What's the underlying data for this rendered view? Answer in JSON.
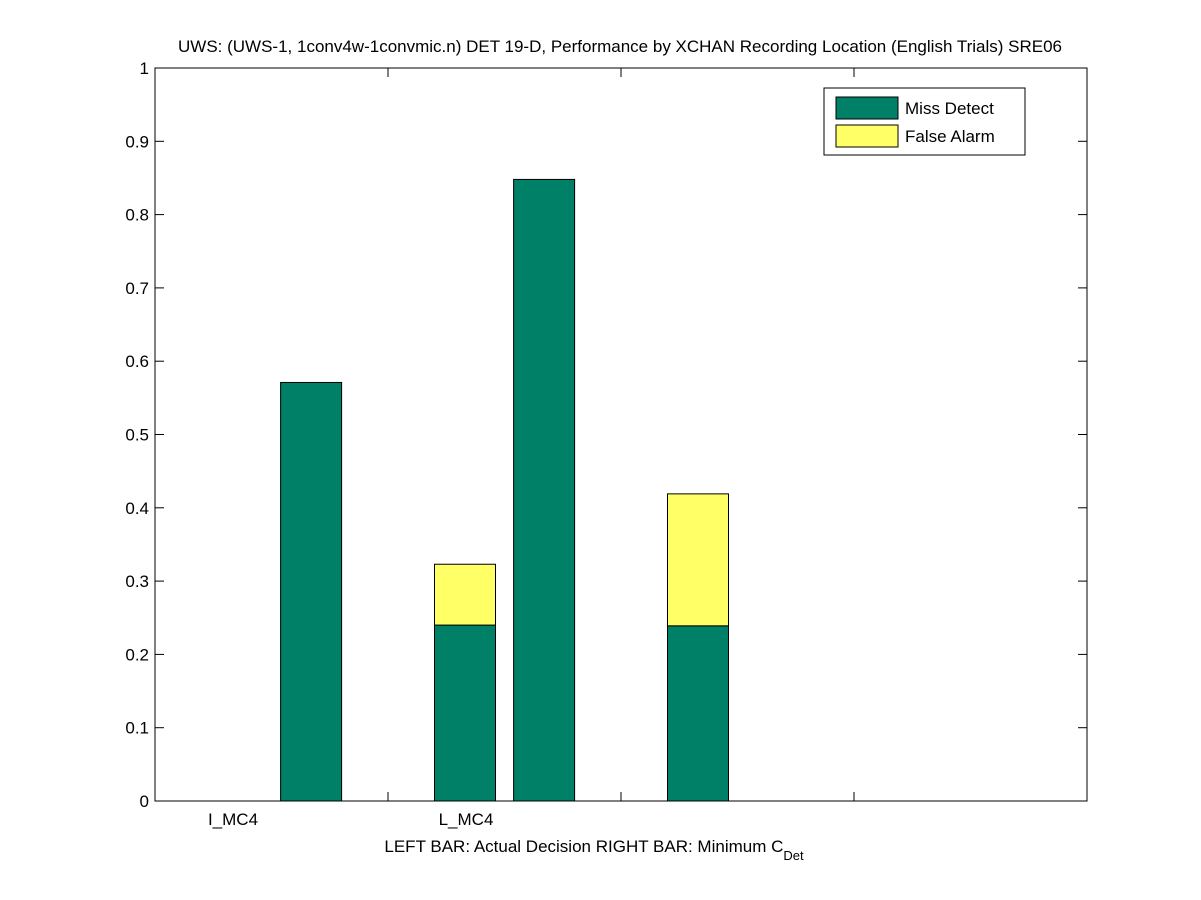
{
  "chart_data": {
    "type": "bar",
    "title": "UWS: (UWS-1, 1conv4w-1convmic.n) DET 19-D,  Performance by XCHAN Recording Location (English Trials) SRE06",
    "categories": [
      "I_MC4",
      "L_MC4"
    ],
    "xlabel": "LEFT BAR: Actual Decision     RIGHT BAR: Minimum C",
    "xlabel_subscript": "Det",
    "ylabel": "",
    "ylim": [
      0,
      1
    ],
    "yticks": [
      "0",
      "0.1",
      "0.2",
      "0.3",
      "0.4",
      "0.5",
      "0.6",
      "0.7",
      "0.8",
      "0.9",
      "1"
    ],
    "xlim": [
      0,
      4
    ],
    "xticks_at": [
      1,
      2
    ],
    "grid": false,
    "legend_position": "top-right",
    "series": [
      {
        "name": "Miss Detect",
        "color": "#008066"
      },
      {
        "name": "False Alarm",
        "color": "#ffff66"
      }
    ],
    "bars": [
      {
        "category": "I_MC4",
        "bar": "actual",
        "miss_detect": 0.571,
        "false_alarm": 0.0
      },
      {
        "category": "I_MC4",
        "bar": "minimum",
        "miss_detect": 0.24,
        "false_alarm": 0.083
      },
      {
        "category": "L_MC4",
        "bar": "actual",
        "miss_detect": 0.848,
        "false_alarm": 0.0
      },
      {
        "category": "L_MC4",
        "bar": "minimum",
        "miss_detect": 0.239,
        "false_alarm": 0.18
      }
    ]
  }
}
